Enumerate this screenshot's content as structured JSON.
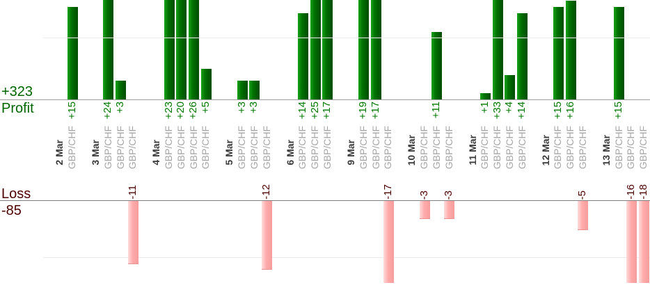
{
  "summary": {
    "profit_total_label": "+323",
    "profit_axis_label": "Profit",
    "loss_axis_label": "Loss",
    "loss_total_label": "-85"
  },
  "chart_data": {
    "type": "bar",
    "orientation": "vertical-columns, values labeled and rotated 90deg",
    "panels": {
      "profit": {
        "axis_label": "Profit",
        "total": 323,
        "total_label": "+323",
        "gridline_value": 10,
        "bars_clipped_at_top": true,
        "bar_gradient": [
          "#17a317",
          "#027202",
          "#004c00"
        ],
        "value_label_color": "#007700"
      },
      "loss": {
        "axis_label": "Loss",
        "total": -85,
        "total_label": "-85",
        "gridline_value": -10,
        "bars_clipped_at_bottom": true,
        "bar_gradient": [
          "#ffdcdc",
          "#ffaaaa",
          "#f59d9d"
        ],
        "value_label_color": "#4d0000"
      }
    },
    "groups": [
      {
        "date": "2 Mar",
        "trades": [
          {
            "instrument": "GBP/CHF",
            "value": 15,
            "label": "+15"
          }
        ]
      },
      {
        "date": "3 Mar",
        "trades": [
          {
            "instrument": "GBP/CHF",
            "value": 24,
            "label": "+24"
          },
          {
            "instrument": "GBP/CHF",
            "value": 3,
            "label": "+3"
          },
          {
            "instrument": "GBP/CHF",
            "value": -11,
            "label": "-11"
          }
        ]
      },
      {
        "date": "4 Mar",
        "trades": [
          {
            "instrument": "GBP/CHF",
            "value": 23,
            "label": "+23"
          },
          {
            "instrument": "GBP/CHF",
            "value": 20,
            "label": "+20"
          },
          {
            "instrument": "GBP/CHF",
            "value": 26,
            "label": "+26"
          },
          {
            "instrument": "GBP/CHF",
            "value": 5,
            "label": "+5"
          }
        ]
      },
      {
        "date": "5 Mar",
        "trades": [
          {
            "instrument": "GBP/CHF",
            "value": 3,
            "label": "+3"
          },
          {
            "instrument": "GBP/CHF",
            "value": 3,
            "label": "+3"
          },
          {
            "instrument": "GBP/CHF",
            "value": -12,
            "label": "-12"
          }
        ]
      },
      {
        "date": "6 Mar",
        "trades": [
          {
            "instrument": "GBP/CHF",
            "value": 14,
            "label": "+14"
          },
          {
            "instrument": "GBP/CHF",
            "value": 25,
            "label": "+25"
          },
          {
            "instrument": "GBP/CHF",
            "value": 17,
            "label": "+17"
          }
        ]
      },
      {
        "date": "9 Mar",
        "trades": [
          {
            "instrument": "GBP/CHF",
            "value": 19,
            "label": "+19"
          },
          {
            "instrument": "GBP/CHF",
            "value": 17,
            "label": "+17"
          },
          {
            "instrument": "GBP/CHF",
            "value": -17,
            "label": "-17"
          }
        ]
      },
      {
        "date": "10 Mar",
        "trades": [
          {
            "instrument": "GBP/CHF",
            "value": -3,
            "label": "-3"
          },
          {
            "instrument": "GBP/CHF",
            "value": 11,
            "label": "+11"
          },
          {
            "instrument": "GBP/CHF",
            "value": -3,
            "label": "-3"
          }
        ]
      },
      {
        "date": "11 Mar",
        "trades": [
          {
            "instrument": "GBP/CHF",
            "value": 1,
            "label": "+1"
          },
          {
            "instrument": "GBP/CHF",
            "value": 33,
            "label": "+33"
          },
          {
            "instrument": "GBP/CHF",
            "value": 4,
            "label": "+4"
          },
          {
            "instrument": "GBP/CHF",
            "value": 14,
            "label": "+14"
          }
        ]
      },
      {
        "date": "12 Mar",
        "trades": [
          {
            "instrument": "GBP/CHF",
            "value": 15,
            "label": "+15"
          },
          {
            "instrument": "GBP/CHF",
            "value": 16,
            "label": "+16"
          },
          {
            "instrument": "GBP/CHF",
            "value": -5,
            "label": "-5"
          }
        ]
      },
      {
        "date": "13 Mar",
        "trades": [
          {
            "instrument": "GBP/CHF",
            "value": 15,
            "label": "+15"
          },
          {
            "instrument": "GBP/CHF",
            "value": -16,
            "label": "-16"
          },
          {
            "instrument": "GBP/CHF",
            "value": -18,
            "label": "-18"
          }
        ]
      }
    ]
  }
}
